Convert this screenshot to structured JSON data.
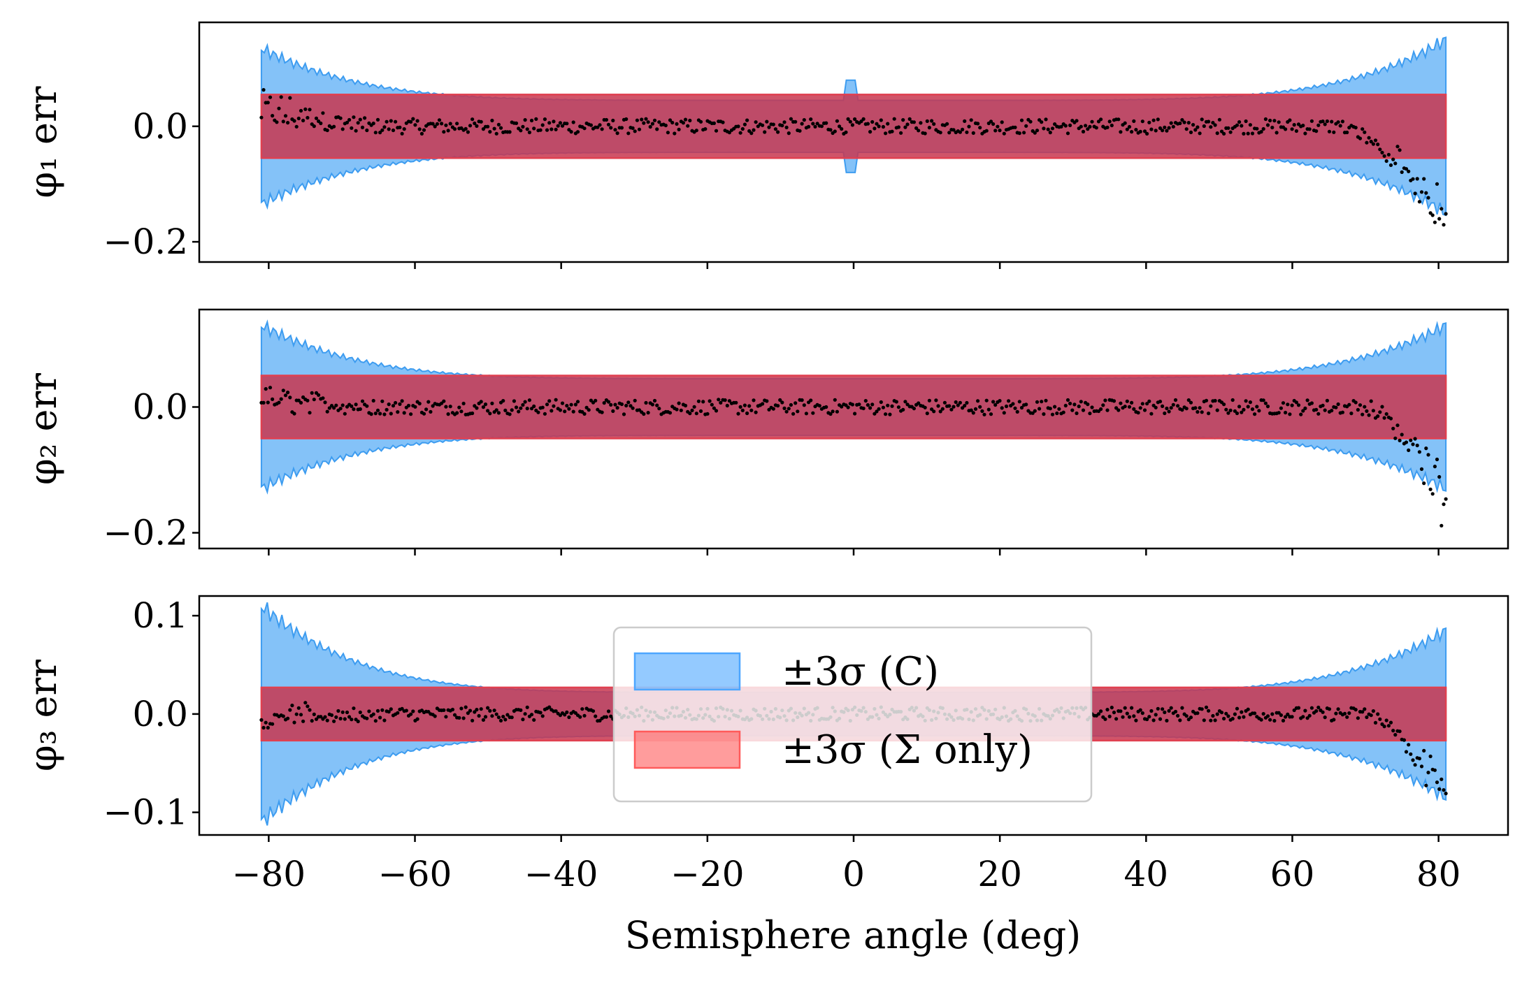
{
  "chart_data": [
    {
      "type": "scatter",
      "ylabel": "φ₁ err",
      "ylim": [
        -0.235,
        0.18
      ],
      "yticks": [
        0.0,
        -0.2
      ],
      "ytick_labels": [
        "0.0",
        "−0.2"
      ],
      "sigma_total_band": {
        "center": 0.0,
        "half_width_mid": 0.045,
        "half_width_edge": 0.135,
        "half_width_right": 0.15,
        "spike_at": -0.5,
        "spike": 0.08
      },
      "sigma_only_band": {
        "x_range": [
          -81,
          81
        ],
        "half_width": 0.055
      },
      "scatter_behavior": {
        "noise": 0.013,
        "right_drop_start": 66,
        "right_drop_end": -0.21,
        "left_offset": 0.06
      }
    },
    {
      "type": "scatter",
      "ylabel": "φ₂ err",
      "ylim": [
        -0.225,
        0.155
      ],
      "yticks": [
        0.0,
        -0.2
      ],
      "ytick_labels": [
        "0.0",
        "−0.2"
      ],
      "sigma_total_band": {
        "center": 0.0,
        "half_width_mid": 0.045,
        "half_width_edge": 0.13,
        "half_width_right": 0.13,
        "spike_at": null,
        "spike": 0
      },
      "sigma_only_band": {
        "x_range": [
          -81,
          81
        ],
        "half_width": 0.05
      },
      "scatter_behavior": {
        "noise": 0.012,
        "right_drop_start": 70,
        "right_drop_end": -0.2,
        "left_offset": 0.03
      }
    },
    {
      "type": "scatter",
      "ylabel": "φ₃ err",
      "ylim": [
        -0.123,
        0.12
      ],
      "yticks": [
        0.1,
        0.0,
        -0.1
      ],
      "ytick_labels": [
        "0.1",
        "0.0",
        "−0.1"
      ],
      "sigma_total_band": {
        "center": 0.0,
        "half_width_mid": 0.022,
        "half_width_edge": 0.11,
        "half_width_right": 0.085,
        "spike_at": null,
        "spike": 0
      },
      "sigma_only_band": {
        "x_range": [
          -81,
          81
        ],
        "half_width": 0.027
      },
      "scatter_behavior": {
        "noise": 0.007,
        "right_drop_start": 70,
        "right_drop_end": -0.11,
        "left_offset": -0.02
      }
    }
  ],
  "shared_x": {
    "xlabel": "Semisphere angle (deg)",
    "xlim": [
      -89.5,
      89.5
    ],
    "xticks": [
      -80,
      -60,
      -40,
      -20,
      0,
      20,
      40,
      60,
      80
    ],
    "xtick_labels": [
      "−80",
      "−60",
      "−40",
      "−20",
      "0",
      "20",
      "40",
      "60",
      "80"
    ]
  },
  "legend": {
    "placement": "lower-center of bottom panel",
    "entries": [
      {
        "label": "±3σ (C)",
        "color": "#4da6ff"
      },
      {
        "label": "±3σ (Σ only)",
        "color": "#ff5a5a"
      }
    ]
  },
  "colors": {
    "band_total_fill": "#6fb7f7",
    "band_total_edge": "#3d9cf0",
    "band_sigma_fill": "#c8364f",
    "band_sigma_edge": "#e04050",
    "points": "#000000"
  }
}
